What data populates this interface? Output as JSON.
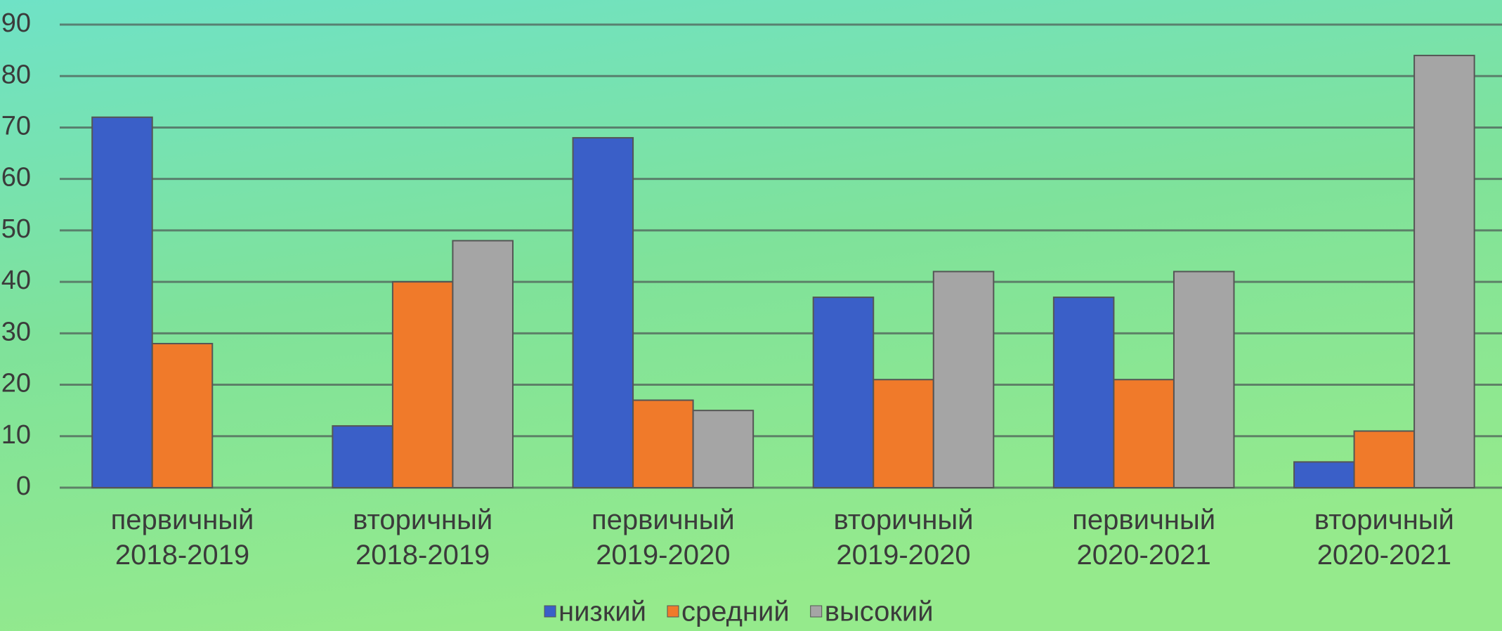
{
  "chart_data": {
    "type": "bar",
    "categories": [
      "первичный 2018-2019",
      "вторичный 2018-2019",
      "первичный 2019-2020",
      "вторичный 2019-2020",
      "первичный 2020-2021",
      "вторичный 2020-2021"
    ],
    "series": [
      {
        "name": "низкий",
        "color": "#3a5fc8",
        "values": [
          72,
          12,
          68,
          37,
          37,
          5
        ]
      },
      {
        "name": "средний",
        "color": "#f07a2a",
        "values": [
          28,
          40,
          17,
          21,
          21,
          11
        ]
      },
      {
        "name": "высокий",
        "color": "#a5a5a5",
        "values": [
          0,
          48,
          15,
          42,
          42,
          84
        ]
      }
    ],
    "ylim": [
      0,
      90
    ],
    "yticks": [
      0,
      10,
      20,
      30,
      40,
      50,
      60,
      70,
      80,
      90
    ],
    "grid": true,
    "legend": "bottom"
  }
}
